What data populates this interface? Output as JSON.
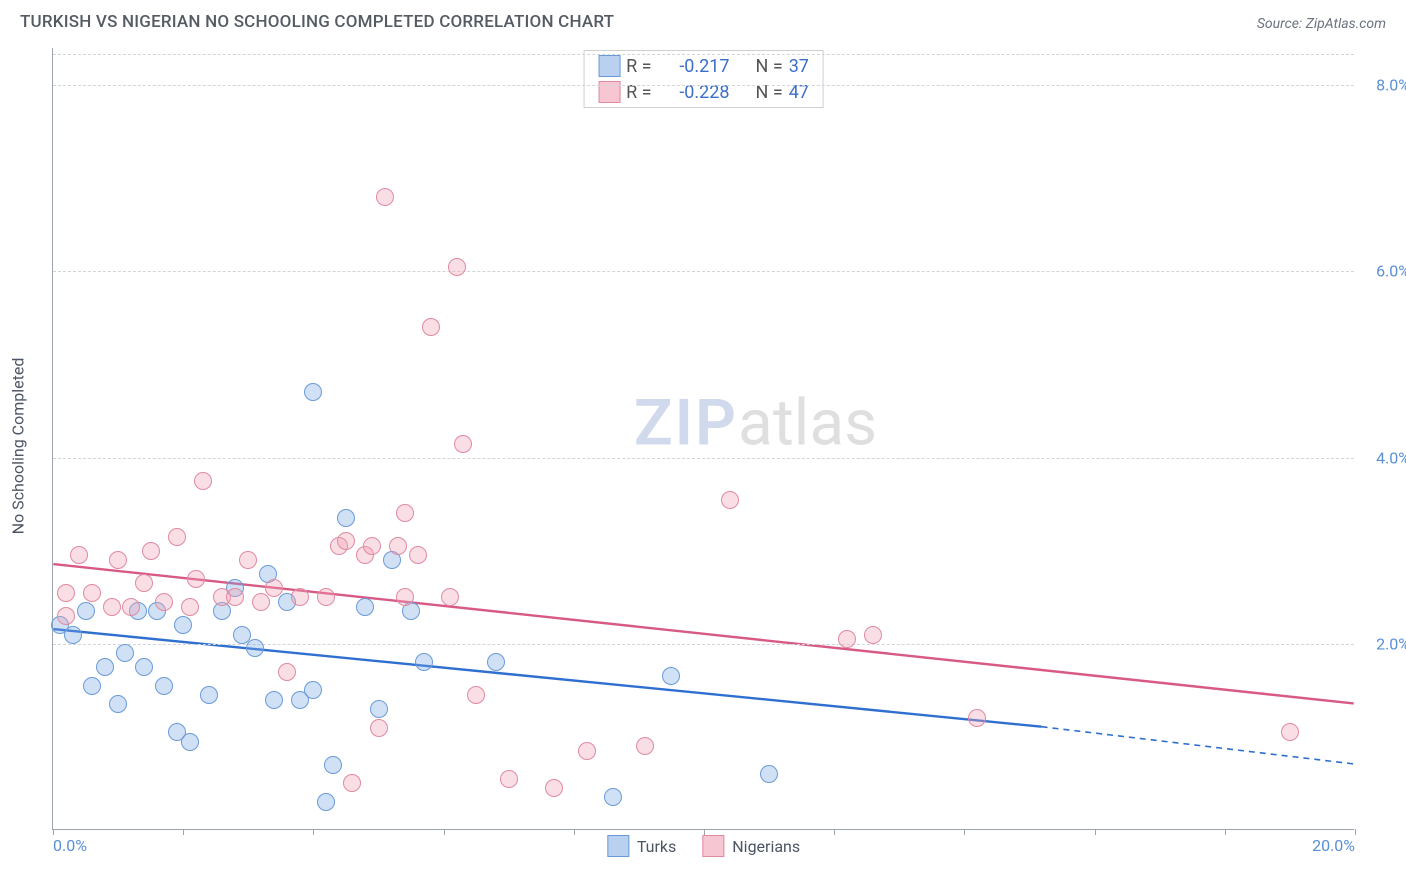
{
  "header": {
    "title": "TURKISH VS NIGERIAN NO SCHOOLING COMPLETED CORRELATION CHART",
    "source": "Source: ZipAtlas.com"
  },
  "watermark": {
    "zip": "ZIP",
    "atlas": "atlas"
  },
  "chart": {
    "type": "scatter",
    "xlim": [
      0,
      20
    ],
    "ylim": [
      0,
      8.4
    ],
    "y_axis_title": "No Schooling Completed",
    "y_ticks": [
      {
        "v": 2.0,
        "label": "2.0%"
      },
      {
        "v": 4.0,
        "label": "4.0%"
      },
      {
        "v": 6.0,
        "label": "6.0%"
      },
      {
        "v": 8.0,
        "label": "8.0%"
      }
    ],
    "x_tick_positions": [
      0,
      2,
      4,
      6,
      8,
      10,
      12,
      14,
      16,
      18,
      20
    ],
    "x_labels": [
      {
        "v": 0,
        "label": "0.0%"
      },
      {
        "v": 20,
        "label": "20.0%"
      }
    ],
    "grid_color": "#d1d5db",
    "axis_color": "#9ca3af",
    "background_color": "#ffffff",
    "marker_radius": 9,
    "marker_border_width": 1.2,
    "series": [
      {
        "name": "Turks",
        "fill": "rgba(120,165,225,0.35)",
        "stroke": "#6a9bd8",
        "swatch_fill": "#b9d1ef",
        "swatch_stroke": "#6a9bd8",
        "R": "-0.217",
        "N": "37",
        "trend": {
          "x1": 0,
          "y1": 2.15,
          "x2": 15.2,
          "y2": 1.1,
          "x3": 20,
          "y3": 0.7,
          "color": "#2f6fd0",
          "width": 2.4
        },
        "points": [
          [
            0.1,
            2.2
          ],
          [
            0.3,
            2.1
          ],
          [
            0.5,
            2.35
          ],
          [
            0.6,
            1.55
          ],
          [
            0.8,
            1.75
          ],
          [
            1.0,
            1.35
          ],
          [
            1.1,
            1.9
          ],
          [
            1.3,
            2.35
          ],
          [
            1.4,
            1.75
          ],
          [
            1.6,
            2.35
          ],
          [
            1.7,
            1.55
          ],
          [
            1.9,
            1.05
          ],
          [
            2.0,
            2.2
          ],
          [
            2.1,
            0.95
          ],
          [
            2.4,
            1.45
          ],
          [
            2.6,
            2.35
          ],
          [
            2.8,
            2.6
          ],
          [
            2.9,
            2.1
          ],
          [
            3.1,
            1.95
          ],
          [
            3.3,
            2.75
          ],
          [
            3.4,
            1.4
          ],
          [
            3.6,
            2.45
          ],
          [
            3.8,
            1.4
          ],
          [
            4.0,
            1.5
          ],
          [
            4.0,
            4.7
          ],
          [
            4.2,
            0.3
          ],
          [
            4.3,
            0.7
          ],
          [
            4.5,
            3.35
          ],
          [
            4.8,
            2.4
          ],
          [
            5.0,
            1.3
          ],
          [
            5.2,
            2.9
          ],
          [
            5.5,
            2.35
          ],
          [
            5.7,
            1.8
          ],
          [
            6.8,
            1.8
          ],
          [
            8.6,
            0.35
          ],
          [
            9.5,
            1.65
          ],
          [
            11.0,
            0.6
          ]
        ]
      },
      {
        "name": "Nigerians",
        "fill": "rgba(240,160,180,0.35)",
        "stroke": "#e08aa0",
        "swatch_fill": "#f6c6d2",
        "swatch_stroke": "#e08aa0",
        "R": "-0.228",
        "N": "47",
        "trend": {
          "x1": 0,
          "y1": 2.85,
          "x2": 20,
          "y2": 1.35,
          "color": "#d85a84",
          "width": 2.4
        },
        "points": [
          [
            0.2,
            2.55
          ],
          [
            0.2,
            2.3
          ],
          [
            0.4,
            2.95
          ],
          [
            0.6,
            2.55
          ],
          [
            0.9,
            2.4
          ],
          [
            1.0,
            2.9
          ],
          [
            1.2,
            2.4
          ],
          [
            1.4,
            2.65
          ],
          [
            1.5,
            3.0
          ],
          [
            1.7,
            2.45
          ],
          [
            1.9,
            3.15
          ],
          [
            2.1,
            2.4
          ],
          [
            2.2,
            2.7
          ],
          [
            2.3,
            3.75
          ],
          [
            2.6,
            2.5
          ],
          [
            2.8,
            2.5
          ],
          [
            3.0,
            2.9
          ],
          [
            3.2,
            2.45
          ],
          [
            3.4,
            2.6
          ],
          [
            3.6,
            1.7
          ],
          [
            3.8,
            2.5
          ],
          [
            4.2,
            2.5
          ],
          [
            4.4,
            3.05
          ],
          [
            4.5,
            3.1
          ],
          [
            4.6,
            0.5
          ],
          [
            4.8,
            2.95
          ],
          [
            4.9,
            3.05
          ],
          [
            5.0,
            1.1
          ],
          [
            5.1,
            6.8
          ],
          [
            5.3,
            3.05
          ],
          [
            5.4,
            3.4
          ],
          [
            5.4,
            2.5
          ],
          [
            5.6,
            2.95
          ],
          [
            5.8,
            5.4
          ],
          [
            6.1,
            2.5
          ],
          [
            6.2,
            6.05
          ],
          [
            6.3,
            4.15
          ],
          [
            6.5,
            1.45
          ],
          [
            7.0,
            0.55
          ],
          [
            7.7,
            0.45
          ],
          [
            8.2,
            0.85
          ],
          [
            9.1,
            0.9
          ],
          [
            10.4,
            3.55
          ],
          [
            12.2,
            2.05
          ],
          [
            12.6,
            2.1
          ],
          [
            14.2,
            1.2
          ],
          [
            19.0,
            1.05
          ]
        ]
      }
    ],
    "legend": {
      "top_box": {
        "R_label": "R =",
        "N_label": "N ="
      },
      "bottom": [
        {
          "label": "Turks",
          "fill": "#b9d1ef",
          "stroke": "#6a9bd8"
        },
        {
          "label": "Nigerians",
          "fill": "#f6c6d2",
          "stroke": "#e08aa0"
        }
      ]
    }
  }
}
